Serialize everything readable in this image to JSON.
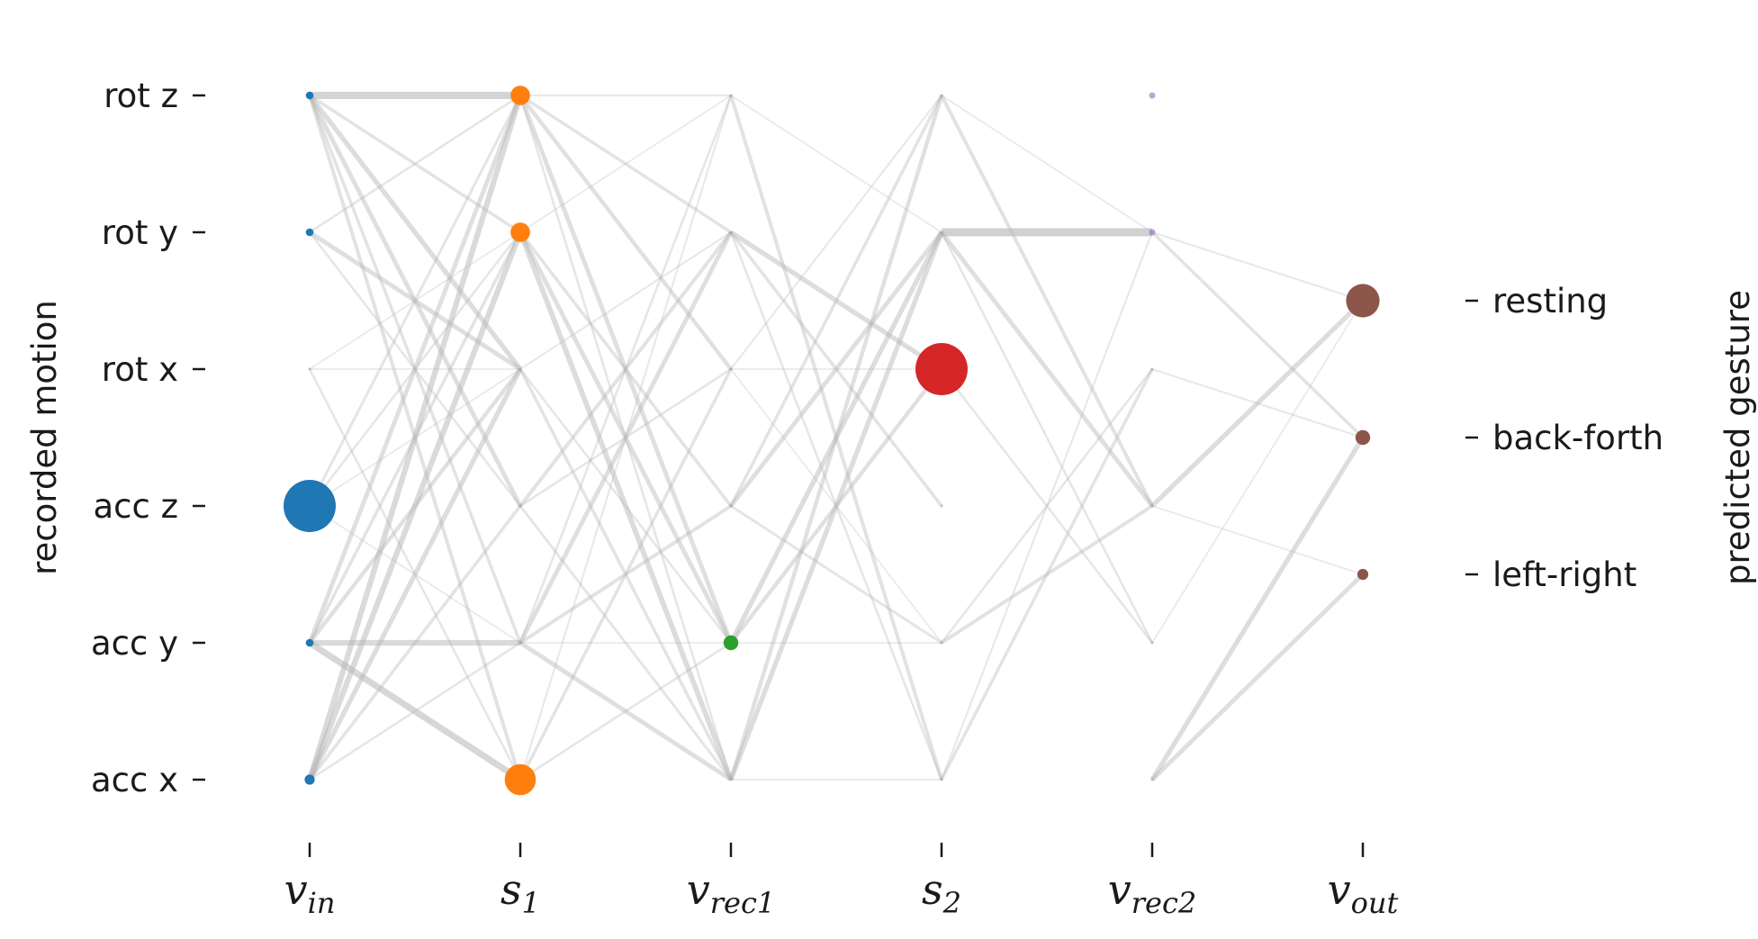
{
  "chart_data": {
    "type": "network",
    "ylabel_left": "recorded motion",
    "ylabel_right": "predicted gesture",
    "layers": [
      {
        "id": "vin",
        "label_main": "v",
        "label_sub": "in",
        "color": "#1f77b4"
      },
      {
        "id": "s1",
        "label_main": "s",
        "label_sub": "1",
        "color": "#ff7f0e"
      },
      {
        "id": "vrec1",
        "label_main": "v",
        "label_sub": "rec1",
        "color": "#2ca02c"
      },
      {
        "id": "s2",
        "label_main": "s",
        "label_sub": "2",
        "color": "#d62728"
      },
      {
        "id": "vrec2",
        "label_main": "v",
        "label_sub": "rec2",
        "color": "#9467bd"
      },
      {
        "id": "vout",
        "label_main": "v",
        "label_sub": "out",
        "color": "#8c564b"
      }
    ],
    "input_labels": [
      "rot z",
      "rot y",
      "rot x",
      "acc z",
      "acc y",
      "acc x"
    ],
    "output_labels": [
      "resting",
      "back-forth",
      "left-right"
    ],
    "node_activity": {
      "vin": [
        0.05,
        0.05,
        0,
        1.0,
        0.05,
        0.1
      ],
      "s1": [
        0.3,
        0.3,
        0,
        0,
        0,
        0.55
      ],
      "vrec1": [
        0,
        0,
        0,
        0,
        0.2,
        0
      ],
      "s2": [
        0,
        0,
        1.0,
        0,
        0,
        0
      ],
      "vrec2": [
        0.02,
        0.02,
        0,
        0,
        0,
        0
      ],
      "vout": [
        0.6,
        0.2,
        0.12
      ]
    },
    "edges": [
      {
        "from": [
          "vin",
          0
        ],
        "to": [
          "s1",
          0
        ],
        "w": 0.8
      },
      {
        "from": [
          "vin",
          0
        ],
        "to": [
          "s1",
          1
        ],
        "w": 0.3
      },
      {
        "from": [
          "vin",
          0
        ],
        "to": [
          "s1",
          2
        ],
        "w": 0.5
      },
      {
        "from": [
          "vin",
          0
        ],
        "to": [
          "s1",
          3
        ],
        "w": 0.45
      },
      {
        "from": [
          "vin",
          0
        ],
        "to": [
          "s1",
          4
        ],
        "w": 0.3
      },
      {
        "from": [
          "vin",
          0
        ],
        "to": [
          "s1",
          5
        ],
        "w": 0.35
      },
      {
        "from": [
          "vin",
          1
        ],
        "to": [
          "s1",
          0
        ],
        "w": 0.2
      },
      {
        "from": [
          "vin",
          1
        ],
        "to": [
          "s1",
          2
        ],
        "w": 0.45
      },
      {
        "from": [
          "vin",
          1
        ],
        "to": [
          "s1",
          3
        ],
        "w": 0.2
      },
      {
        "from": [
          "vin",
          2
        ],
        "to": [
          "s1",
          1
        ],
        "w": 0.1
      },
      {
        "from": [
          "vin",
          2
        ],
        "to": [
          "s1",
          2
        ],
        "w": 0.1
      },
      {
        "from": [
          "vin",
          2
        ],
        "to": [
          "s1",
          5
        ],
        "w": 0.2
      },
      {
        "from": [
          "vin",
          3
        ],
        "to": [
          "s1",
          0
        ],
        "w": 0.25
      },
      {
        "from": [
          "vin",
          3
        ],
        "to": [
          "s1",
          1
        ],
        "w": 0.2
      },
      {
        "from": [
          "vin",
          3
        ],
        "to": [
          "s1",
          2
        ],
        "w": 0.1
      },
      {
        "from": [
          "vin",
          3
        ],
        "to": [
          "s1",
          4
        ],
        "w": 0.1
      },
      {
        "from": [
          "vin",
          4
        ],
        "to": [
          "s1",
          0
        ],
        "w": 0.45
      },
      {
        "from": [
          "vin",
          4
        ],
        "to": [
          "s1",
          1
        ],
        "w": 0.3
      },
      {
        "from": [
          "vin",
          4
        ],
        "to": [
          "s1",
          2
        ],
        "w": 0.4
      },
      {
        "from": [
          "vin",
          4
        ],
        "to": [
          "s1",
          4
        ],
        "w": 0.6
      },
      {
        "from": [
          "vin",
          4
        ],
        "to": [
          "s1",
          5
        ],
        "w": 0.7
      },
      {
        "from": [
          "vin",
          5
        ],
        "to": [
          "s1",
          0
        ],
        "w": 0.6
      },
      {
        "from": [
          "vin",
          5
        ],
        "to": [
          "s1",
          1
        ],
        "w": 0.6
      },
      {
        "from": [
          "vin",
          5
        ],
        "to": [
          "s1",
          2
        ],
        "w": 0.5
      },
      {
        "from": [
          "vin",
          5
        ],
        "to": [
          "s1",
          3
        ],
        "w": 0.3
      },
      {
        "from": [
          "vin",
          5
        ],
        "to": [
          "s1",
          4
        ],
        "w": 0.2
      },
      {
        "from": [
          "s1",
          0
        ],
        "to": [
          "vrec1",
          0
        ],
        "w": 0.15
      },
      {
        "from": [
          "s1",
          0
        ],
        "to": [
          "vrec1",
          1
        ],
        "w": 0.3
      },
      {
        "from": [
          "s1",
          0
        ],
        "to": [
          "vrec1",
          2
        ],
        "w": 0.4
      },
      {
        "from": [
          "s1",
          0
        ],
        "to": [
          "vrec1",
          4
        ],
        "w": 0.45
      },
      {
        "from": [
          "s1",
          0
        ],
        "to": [
          "vrec1",
          5
        ],
        "w": 0.2
      },
      {
        "from": [
          "s1",
          1
        ],
        "to": [
          "vrec1",
          0
        ],
        "w": 0.1
      },
      {
        "from": [
          "s1",
          1
        ],
        "to": [
          "vrec1",
          3
        ],
        "w": 0.3
      },
      {
        "from": [
          "s1",
          1
        ],
        "to": [
          "vrec1",
          4
        ],
        "w": 0.45
      },
      {
        "from": [
          "s1",
          1
        ],
        "to": [
          "vrec1",
          5
        ],
        "w": 0.55
      },
      {
        "from": [
          "s1",
          2
        ],
        "to": [
          "vrec1",
          1
        ],
        "w": 0.15
      },
      {
        "from": [
          "s1",
          2
        ],
        "to": [
          "vrec1",
          4
        ],
        "w": 0.2
      },
      {
        "from": [
          "s1",
          2
        ],
        "to": [
          "vrec1",
          5
        ],
        "w": 0.3
      },
      {
        "from": [
          "s1",
          3
        ],
        "to": [
          "vrec1",
          1
        ],
        "w": 0.35
      },
      {
        "from": [
          "s1",
          3
        ],
        "to": [
          "vrec1",
          2
        ],
        "w": 0.2
      },
      {
        "from": [
          "s1",
          3
        ],
        "to": [
          "vrec1",
          5
        ],
        "w": 0.25
      },
      {
        "from": [
          "s1",
          4
        ],
        "to": [
          "vrec1",
          0
        ],
        "w": 0.2
      },
      {
        "from": [
          "s1",
          4
        ],
        "to": [
          "vrec1",
          1
        ],
        "w": 0.45
      },
      {
        "from": [
          "s1",
          4
        ],
        "to": [
          "vrec1",
          3
        ],
        "w": 0.35
      },
      {
        "from": [
          "s1",
          4
        ],
        "to": [
          "vrec1",
          4
        ],
        "w": 0.1
      },
      {
        "from": [
          "s1",
          4
        ],
        "to": [
          "vrec1",
          5
        ],
        "w": 0.45
      },
      {
        "from": [
          "s1",
          5
        ],
        "to": [
          "vrec1",
          0
        ],
        "w": 0.15
      },
      {
        "from": [
          "s1",
          5
        ],
        "to": [
          "vrec1",
          2
        ],
        "w": 0.3
      },
      {
        "from": [
          "s1",
          5
        ],
        "to": [
          "vrec1",
          4
        ],
        "w": 0.2
      },
      {
        "from": [
          "vrec1",
          0
        ],
        "to": [
          "s2",
          1
        ],
        "w": 0.1
      },
      {
        "from": [
          "vrec1",
          0
        ],
        "to": [
          "s2",
          5
        ],
        "w": 0.35
      },
      {
        "from": [
          "vrec1",
          1
        ],
        "to": [
          "s2",
          2
        ],
        "w": 0.5
      },
      {
        "from": [
          "vrec1",
          1
        ],
        "to": [
          "s2",
          3
        ],
        "w": 0.3
      },
      {
        "from": [
          "vrec1",
          1
        ],
        "to": [
          "s2",
          5
        ],
        "w": 0.2
      },
      {
        "from": [
          "vrec1",
          2
        ],
        "to": [
          "s2",
          0
        ],
        "w": 0.15
      },
      {
        "from": [
          "vrec1",
          2
        ],
        "to": [
          "s2",
          2
        ],
        "w": 0.1
      },
      {
        "from": [
          "vrec1",
          2
        ],
        "to": [
          "s2",
          4
        ],
        "w": 0.1
      },
      {
        "from": [
          "vrec1",
          3
        ],
        "to": [
          "s2",
          0
        ],
        "w": 0.3
      },
      {
        "from": [
          "vrec1",
          3
        ],
        "to": [
          "s2",
          1
        ],
        "w": 0.45
      },
      {
        "from": [
          "vrec1",
          3
        ],
        "to": [
          "s2",
          4
        ],
        "w": 0.25
      },
      {
        "from": [
          "vrec1",
          4
        ],
        "to": [
          "s2",
          1
        ],
        "w": 0.5
      },
      {
        "from": [
          "vrec1",
          4
        ],
        "to": [
          "s2",
          2
        ],
        "w": 0.4
      },
      {
        "from": [
          "vrec1",
          4
        ],
        "to": [
          "s2",
          4
        ],
        "w": 0.1
      },
      {
        "from": [
          "vrec1",
          5
        ],
        "to": [
          "s2",
          0
        ],
        "w": 0.4
      },
      {
        "from": [
          "vrec1",
          5
        ],
        "to": [
          "s2",
          1
        ],
        "w": 0.5
      },
      {
        "from": [
          "vrec1",
          5
        ],
        "to": [
          "s2",
          5
        ],
        "w": 0.1
      },
      {
        "from": [
          "s2",
          0
        ],
        "to": [
          "vrec2",
          1
        ],
        "w": 0.1
      },
      {
        "from": [
          "s2",
          0
        ],
        "to": [
          "vrec2",
          3
        ],
        "w": 0.35
      },
      {
        "from": [
          "s2",
          1
        ],
        "to": [
          "vrec2",
          1
        ],
        "w": 0.9
      },
      {
        "from": [
          "s2",
          1
        ],
        "to": [
          "vrec2",
          3
        ],
        "w": 0.45
      },
      {
        "from": [
          "s2",
          1
        ],
        "to": [
          "vrec2",
          4
        ],
        "w": 0.2
      },
      {
        "from": [
          "s2",
          2
        ],
        "to": [
          "vrec2",
          4
        ],
        "w": 0.2
      },
      {
        "from": [
          "s2",
          4
        ],
        "to": [
          "vrec2",
          2
        ],
        "w": 0.2
      },
      {
        "from": [
          "s2",
          4
        ],
        "to": [
          "vrec2",
          3
        ],
        "w": 0.35
      },
      {
        "from": [
          "s2",
          5
        ],
        "to": [
          "vrec2",
          1
        ],
        "w": 0.15
      },
      {
        "from": [
          "s2",
          5
        ],
        "to": [
          "vrec2",
          2
        ],
        "w": 0.3
      },
      {
        "from": [
          "vrec2",
          1
        ],
        "to": [
          "vout",
          0
        ],
        "w": 0.15
      },
      {
        "from": [
          "vrec2",
          1
        ],
        "to": [
          "vout",
          1
        ],
        "w": 0.3
      },
      {
        "from": [
          "vrec2",
          2
        ],
        "to": [
          "vout",
          1
        ],
        "w": 0.15
      },
      {
        "from": [
          "vrec2",
          3
        ],
        "to": [
          "vout",
          0
        ],
        "w": 0.5
      },
      {
        "from": [
          "vrec2",
          3
        ],
        "to": [
          "vout",
          2
        ],
        "w": 0.1
      },
      {
        "from": [
          "vrec2",
          4
        ],
        "to": [
          "vout",
          0
        ],
        "w": 0.1
      },
      {
        "from": [
          "vrec2",
          5
        ],
        "to": [
          "vout",
          1
        ],
        "w": 0.5
      },
      {
        "from": [
          "vrec2",
          5
        ],
        "to": [
          "vout",
          2
        ],
        "w": 0.45
      }
    ]
  }
}
